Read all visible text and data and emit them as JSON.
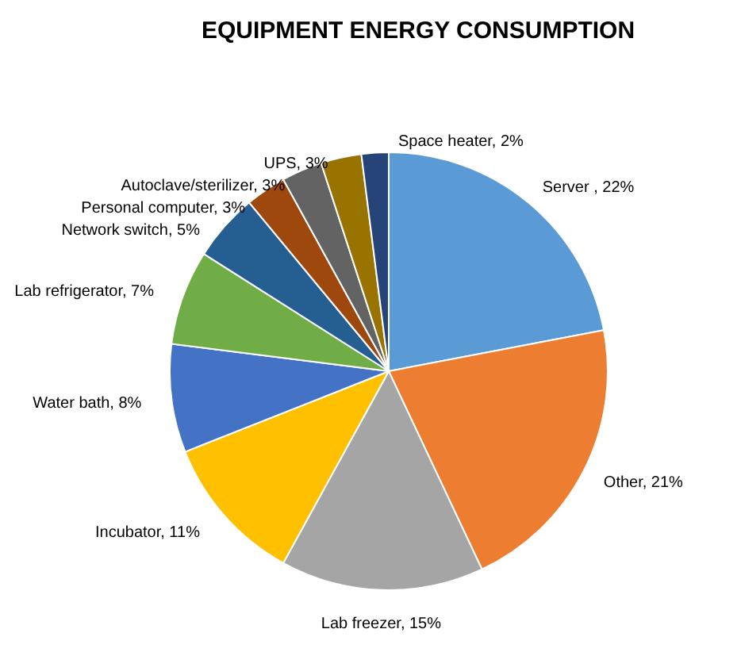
{
  "chart_data": {
    "type": "pie",
    "title": "EQUIPMENT ENERGY CONSUMPTION",
    "categories": [
      "Server , 22%",
      "Other, 21%",
      "Lab freezer, 15%",
      "Incubator, 11%",
      "Water bath, 8%",
      "Lab refrigerator, 7%",
      "Network switch, 5%",
      "Personal computer, 3%",
      "Autoclave/sterilizer, 3%",
      "UPS, 3%",
      "Space heater, 2%"
    ],
    "values": [
      22,
      21,
      15,
      11,
      8,
      7,
      5,
      3,
      3,
      3,
      2
    ],
    "colors": [
      "#5b9bd5",
      "#ed7d31",
      "#a5a5a5",
      "#ffc000",
      "#4472c4",
      "#70ad47",
      "#255e91",
      "#9e480e",
      "#636363",
      "#997300",
      "#264478"
    ]
  }
}
